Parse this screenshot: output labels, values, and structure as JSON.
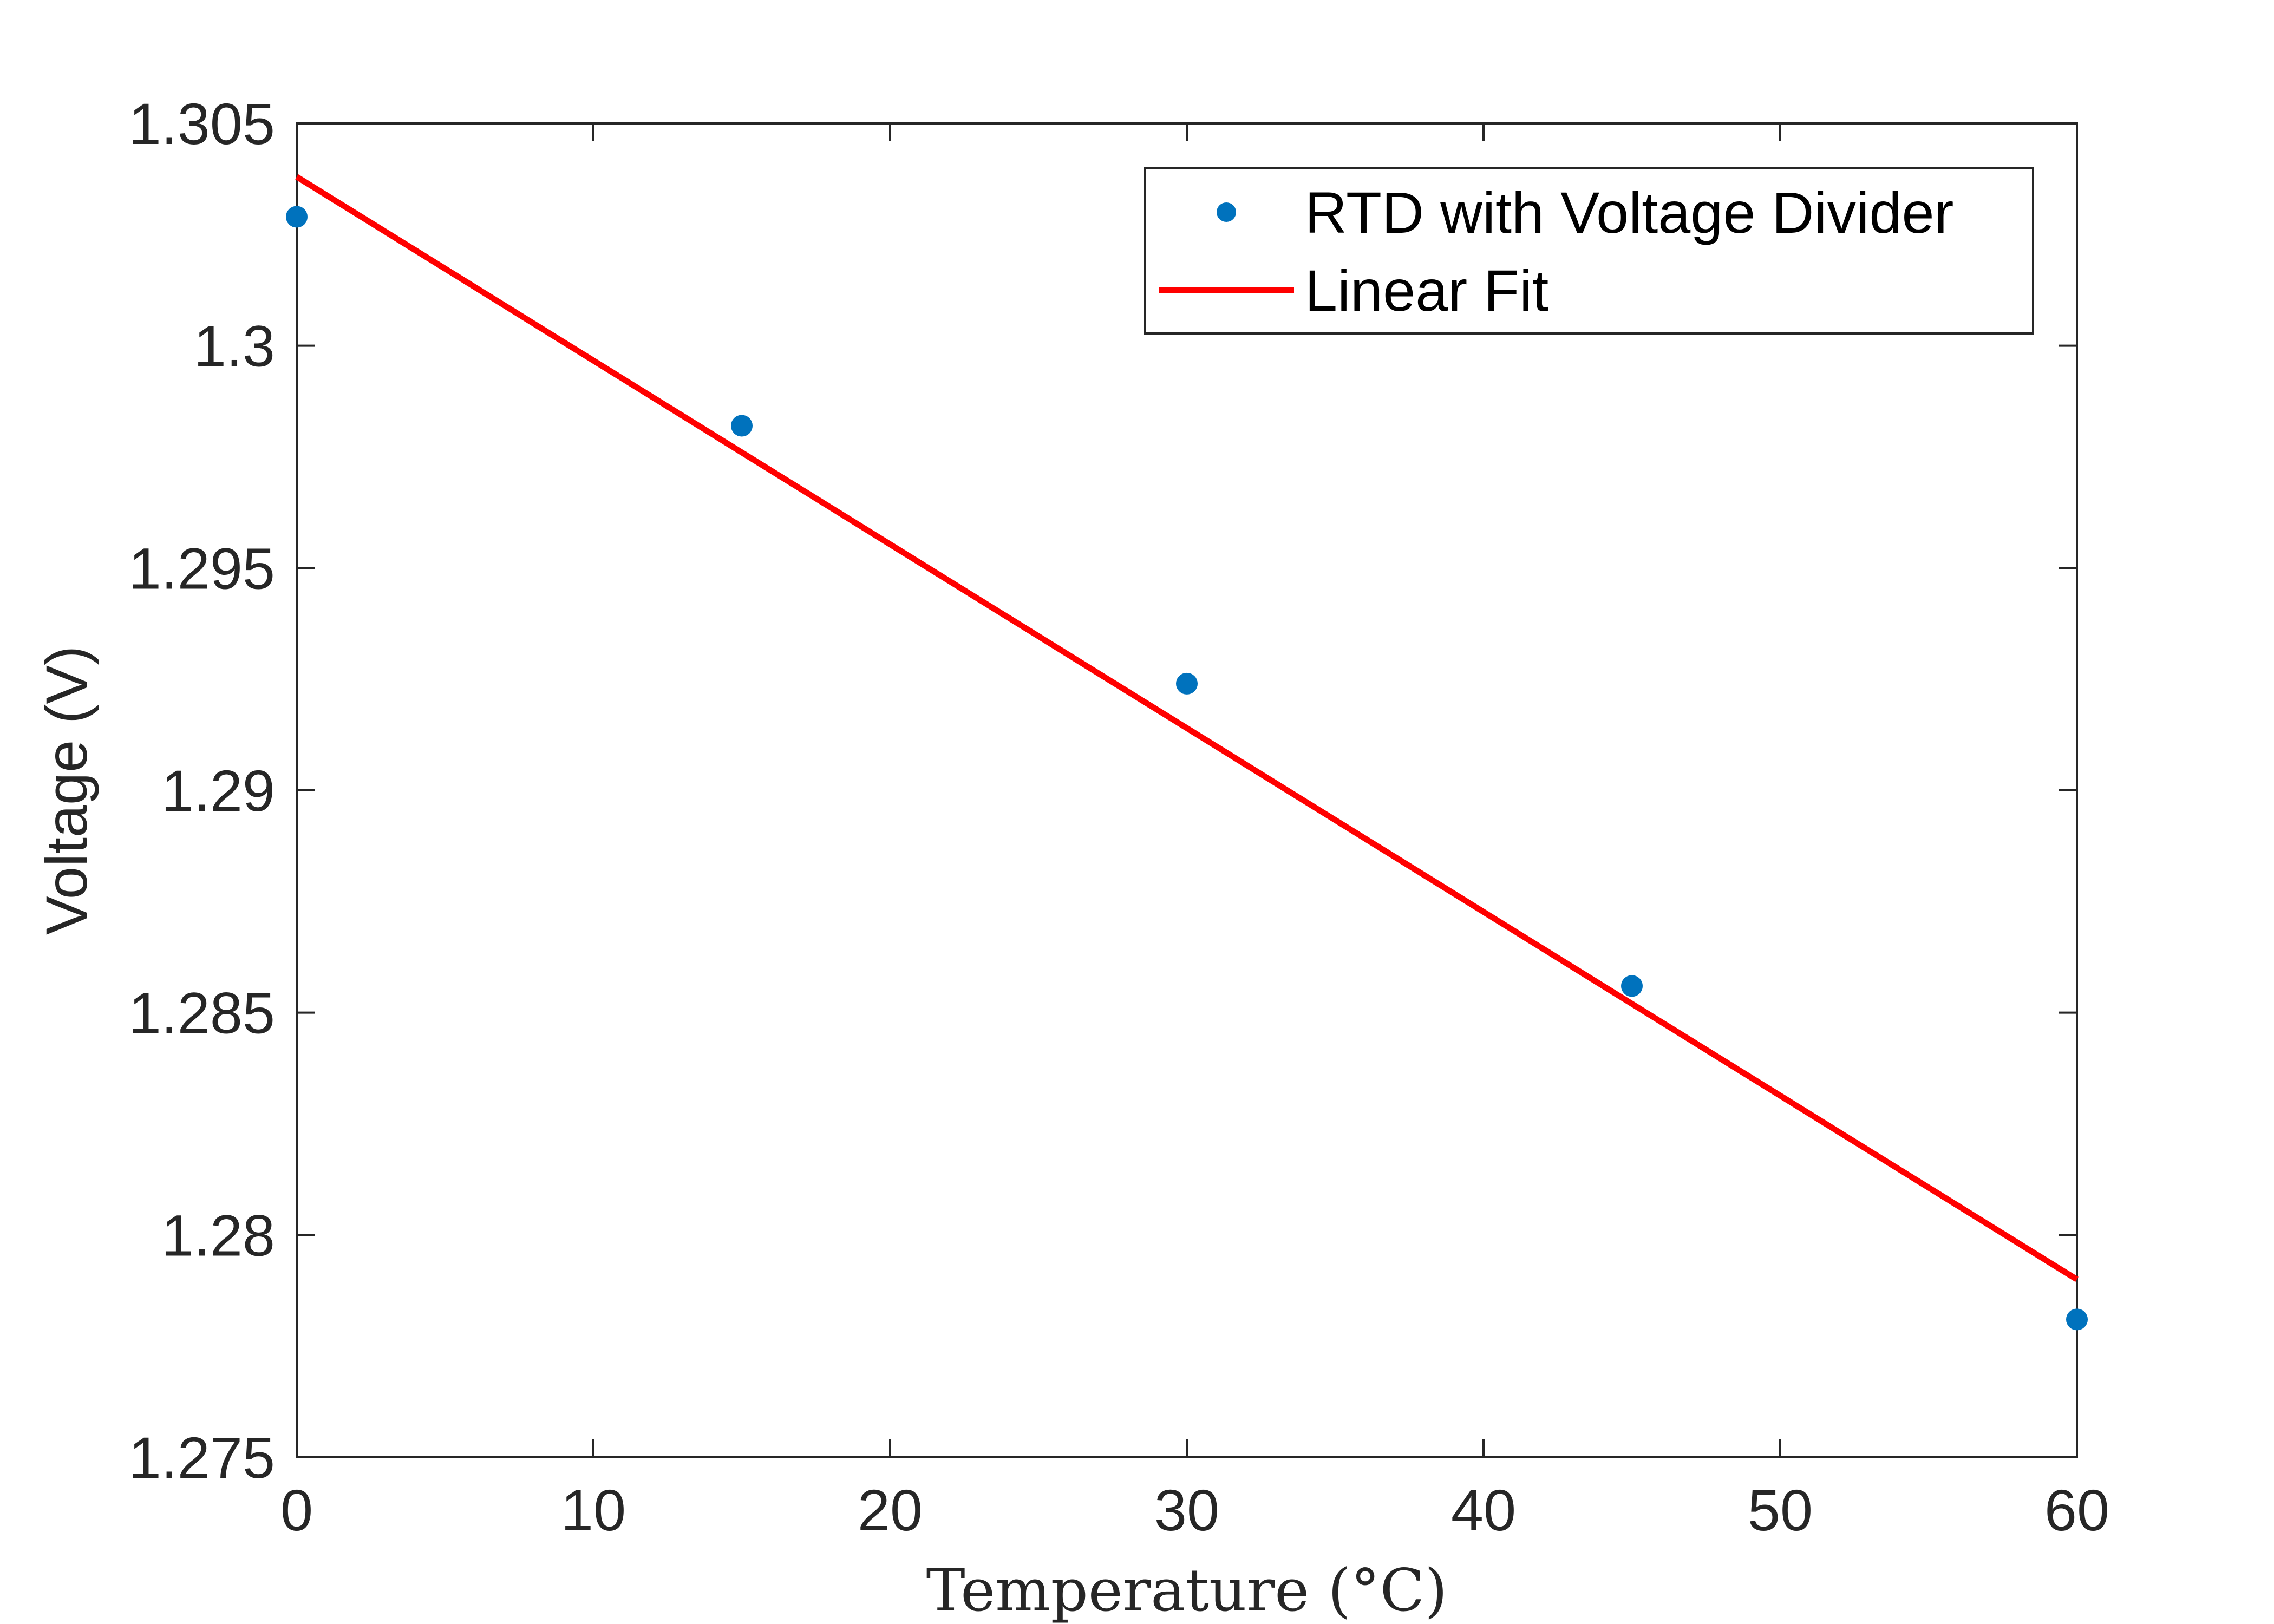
{
  "chart_data": {
    "type": "scatter",
    "xlabel": "Temperature (°C)",
    "ylabel": "Voltage (V)",
    "xlim": [
      0,
      60
    ],
    "ylim": [
      1.275,
      1.305
    ],
    "xticks": [
      0,
      10,
      20,
      30,
      40,
      50,
      60
    ],
    "yticks": [
      1.275,
      1.28,
      1.285,
      1.29,
      1.295,
      1.3,
      1.305
    ],
    "xtick_labels": [
      "0",
      "10",
      "20",
      "30",
      "40",
      "50",
      "60"
    ],
    "ytick_labels": [
      "1.275",
      "1.28",
      "1.285",
      "1.29",
      "1.295",
      "1.3",
      "1.305"
    ],
    "grid": false,
    "legend_position": "top-right",
    "series": [
      {
        "name": "RTD with Voltage Divider",
        "type": "scatter",
        "color": "#0072BD",
        "x": [
          0,
          15,
          30,
          45,
          60
        ],
        "y": [
          1.3029,
          1.2982,
          1.2924,
          1.2856,
          1.2781
        ]
      },
      {
        "name": "Linear Fit",
        "type": "line",
        "color": "#FF0000",
        "x": [
          0,
          60
        ],
        "y": [
          1.3038,
          1.279
        ]
      }
    ]
  }
}
